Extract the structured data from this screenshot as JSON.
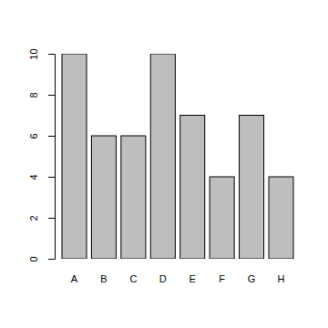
{
  "chart_data": {
    "type": "bar",
    "categories": [
      "A",
      "B",
      "C",
      "D",
      "E",
      "F",
      "G",
      "H"
    ],
    "values": [
      10,
      6,
      6,
      10,
      7,
      4,
      7,
      4
    ],
    "color": "#bebebe",
    "ylim": [
      0,
      10
    ],
    "yticks": [
      0,
      2,
      4,
      6,
      8,
      10
    ]
  }
}
